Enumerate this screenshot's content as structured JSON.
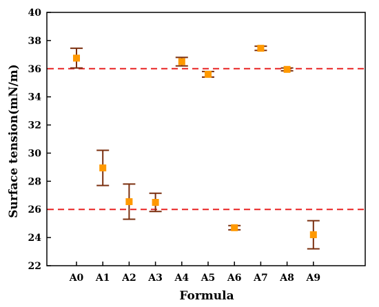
{
  "chart_data": {
    "type": "scatter",
    "title": "",
    "xlabel": "Formula",
    "ylabel": "Surface tension(mN/m)",
    "categories": [
      "A0",
      "A1",
      "A2",
      "A3",
      "A4",
      "A5",
      "A6",
      "A7",
      "A8",
      "A9"
    ],
    "values": [
      36.75,
      28.95,
      26.55,
      26.5,
      36.5,
      35.6,
      24.7,
      37.45,
      35.95,
      24.2
    ],
    "errors": [
      0.7,
      1.25,
      1.25,
      0.65,
      0.3,
      0.2,
      0.15,
      0.15,
      0.1,
      1.0
    ],
    "ylim": [
      22,
      40
    ],
    "yticks": [
      22,
      24,
      26,
      28,
      30,
      32,
      34,
      36,
      38,
      40
    ],
    "reference_lines": [
      36,
      26
    ],
    "grid": false,
    "colors": {
      "marker": "#ff9900",
      "errorbar": "#7a2e0e",
      "reference_line": "#e82020",
      "axis": "#000000"
    }
  }
}
